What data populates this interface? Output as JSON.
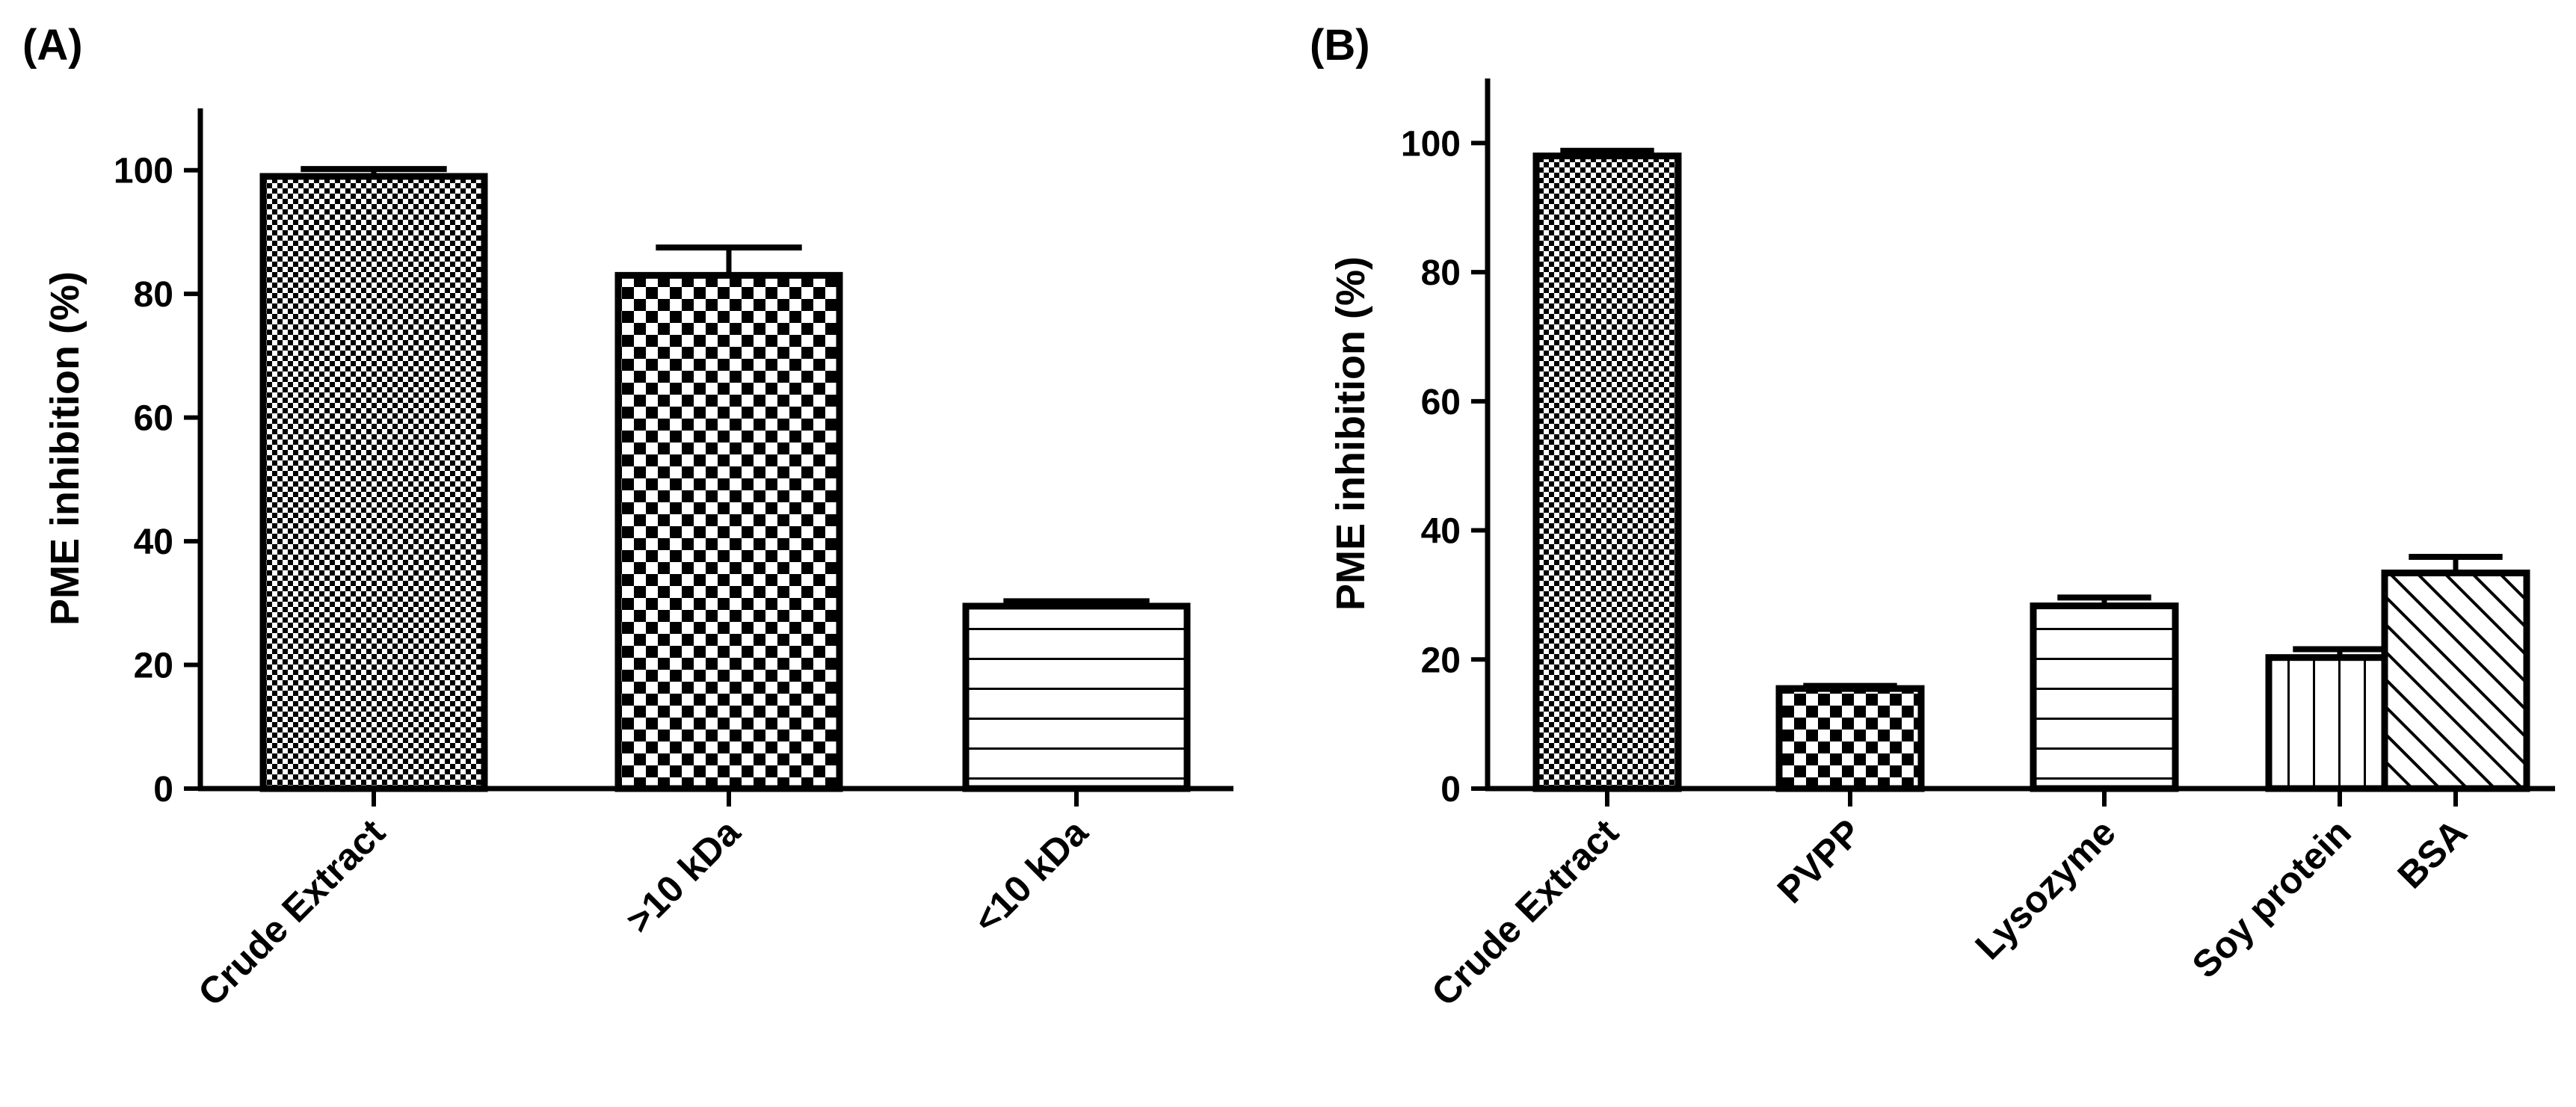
{
  "chart_data": [
    {
      "type": "bar",
      "panel_label": "(A)",
      "title": "",
      "xlabel": "",
      "ylabel": "PME inhibition (%)",
      "ylim": [
        0,
        110
      ],
      "yticks": [
        0,
        20,
        40,
        60,
        80,
        100
      ],
      "grid": false,
      "categories": [
        "Crude Extract",
        ">10 kDa",
        "<10 kDa"
      ],
      "values": [
        99,
        83,
        29.5
      ],
      "errors": [
        1.2,
        4.5,
        0.8
      ],
      "patterns": [
        "fine-check",
        "coarse-check",
        "horizontal"
      ]
    },
    {
      "type": "bar",
      "panel_label": "(B)",
      "title": "",
      "xlabel": "",
      "ylabel": "PME inhibition (%)",
      "ylim": [
        0,
        110
      ],
      "yticks": [
        0,
        20,
        40,
        60,
        80,
        100
      ],
      "grid": false,
      "categories": [
        "Crude Extract",
        "PVPP",
        "Lysozyme",
        "Soy protein",
        "BSA"
      ],
      "values": [
        98,
        15.5,
        28.3,
        20.3,
        33.4
      ],
      "errors": [
        0.8,
        0.4,
        1.3,
        1.3,
        2.5
      ],
      "patterns": [
        "fine-check",
        "coarse-check",
        "horizontal",
        "vertical",
        "diagonal"
      ]
    }
  ]
}
